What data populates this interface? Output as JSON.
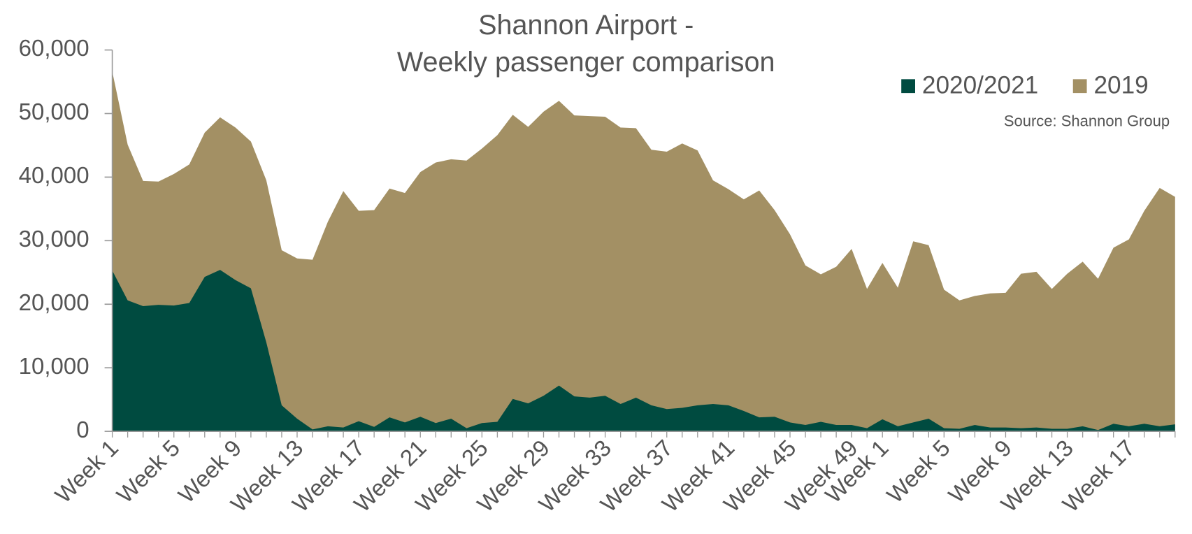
{
  "chart_data": {
    "type": "area",
    "title": [
      "Shannon Airport -",
      "Weekly passenger comparison"
    ],
    "annotation": "Source: Shannon Group",
    "categories": [
      "Week 1",
      null,
      null,
      null,
      "Week 5",
      null,
      null,
      null,
      "Week 9",
      null,
      null,
      null,
      "Week 13",
      null,
      null,
      null,
      "Week 17",
      null,
      null,
      null,
      "Week 21",
      null,
      null,
      null,
      "Week 25",
      null,
      null,
      null,
      "Week 29",
      null,
      null,
      null,
      "Week 33",
      null,
      null,
      null,
      "Week 37",
      null,
      null,
      null,
      "Week 41",
      null,
      null,
      null,
      "Week 45",
      null,
      null,
      null,
      "Week 49",
      null,
      "Week 1",
      null,
      null,
      null,
      "Week 5",
      null,
      null,
      null,
      "Week 9",
      null,
      null,
      null,
      "Week 13",
      null,
      null,
      null,
      "Week 17",
      null,
      null,
      null
    ],
    "series": [
      {
        "name": "2019",
        "color": "#a39064",
        "values": [
          56600,
          45100,
          39400,
          39300,
          40500,
          42000,
          47000,
          49400,
          47800,
          45600,
          39500,
          28500,
          27200,
          27000,
          33000,
          37800,
          34700,
          34800,
          38200,
          37500,
          40800,
          42300,
          42800,
          42600,
          44500,
          46600,
          49800,
          47900,
          50300,
          52000,
          49700,
          49600,
          49500,
          47800,
          47700,
          44300,
          44000,
          45300,
          44200,
          39500,
          38100,
          36500,
          37900,
          34800,
          31000,
          26100,
          24700,
          25900,
          28700,
          22400,
          26500,
          22600,
          29900,
          29300,
          22300,
          20600,
          21300,
          21700,
          21800,
          24800,
          25100,
          22400,
          24800,
          26700,
          24000,
          28900,
          30200,
          34700,
          38300,
          36900
        ]
      },
      {
        "name": "2020/2021",
        "color": "#004b40",
        "values": [
          25300,
          20600,
          19700,
          19900,
          19800,
          20200,
          24300,
          25400,
          23800,
          22500,
          14000,
          4100,
          2000,
          300,
          800,
          600,
          1600,
          700,
          2200,
          1400,
          2300,
          1300,
          2000,
          500,
          1300,
          1500,
          5100,
          4400,
          5600,
          7200,
          5500,
          5300,
          5600,
          4300,
          5300,
          4100,
          3500,
          3700,
          4100,
          4300,
          4100,
          3200,
          2200,
          2300,
          1400,
          1000,
          1500,
          1000,
          1000,
          500,
          1900,
          800,
          1400,
          2000,
          500,
          400,
          1000,
          600,
          600,
          500,
          600,
          400,
          400,
          800,
          200,
          1200,
          800,
          1200,
          800,
          1100
        ]
      }
    ],
    "legend_order": [
      1,
      0
    ],
    "ylim": [
      0,
      60000
    ],
    "yticks": [
      0,
      {
        "value": 10000,
        "label": "10,000"
      },
      {
        "value": 20000,
        "label": "20,000"
      },
      {
        "value": 30000,
        "label": "30,000"
      },
      {
        "value": 40000,
        "label": "40,000"
      },
      {
        "value": 50000,
        "label": "50,000"
      },
      {
        "value": 60000,
        "label": "60,000"
      }
    ],
    "grid": false,
    "legend": "top-right"
  }
}
